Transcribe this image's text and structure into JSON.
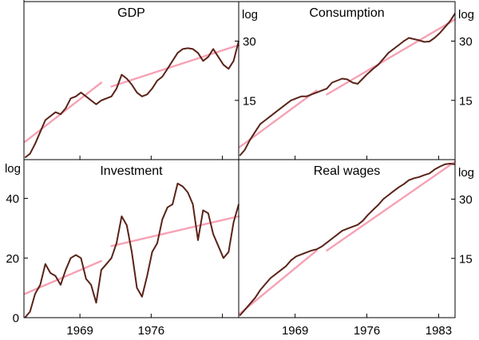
{
  "colors": {
    "series": "#5a2318",
    "trend": "#f7a1b4",
    "frame": "#000000"
  },
  "x_axis": {
    "tick_labels": [
      "1969",
      "1976",
      "1983"
    ]
  },
  "chart_data": [
    {
      "type": "line",
      "title": "GDP",
      "scale": "log",
      "ylabel": "log",
      "ylabel_side": "right",
      "ylim": [
        0,
        40
      ],
      "ytick_values": [
        15,
        30
      ],
      "ytick_labels": [
        "15",
        "30"
      ],
      "xlim": [
        1963.5,
        1984.6
      ],
      "series": {
        "name": "GDP",
        "x": [
          1963.6,
          1964.1,
          1964.6,
          1965.1,
          1965.6,
          1966.1,
          1966.6,
          1967.1,
          1967.6,
          1968.1,
          1968.6,
          1969.1,
          1969.6,
          1970.1,
          1970.6,
          1971.1,
          1971.6,
          1972.1,
          1972.6,
          1973.1,
          1973.6,
          1974.1,
          1974.6,
          1975.1,
          1975.6,
          1976.1,
          1976.6,
          1977.1,
          1977.6,
          1978.1,
          1978.6,
          1979.1,
          1979.6,
          1980.1,
          1980.6,
          1981.1,
          1981.6,
          1982.1,
          1982.6,
          1983.1,
          1983.6,
          1984.1,
          1984.6
        ],
        "y": [
          0.5,
          1.5,
          4,
          7,
          10,
          11,
          12,
          11.5,
          13,
          15.5,
          16,
          17,
          16,
          15,
          14,
          15,
          15.5,
          16,
          18,
          21.5,
          20.5,
          19,
          17,
          16,
          16.5,
          18,
          20,
          21,
          23,
          25,
          27,
          28,
          28.2,
          28,
          27,
          25,
          26,
          28,
          26,
          24,
          23,
          25,
          30
        ]
      },
      "trends": [
        {
          "x": [
            1963.6,
            1971.1
          ],
          "y": [
            4.5,
            19.5
          ]
        },
        {
          "x": [
            1972.1,
            1984.6
          ],
          "y": [
            18.5,
            29
          ]
        }
      ]
    },
    {
      "type": "line",
      "title": "Consumption",
      "scale": "log",
      "ylabel": "log",
      "ylabel_side": "right",
      "ylim": [
        0,
        40
      ],
      "ytick_values": [
        15,
        30
      ],
      "ytick_labels": [
        "15",
        "30"
      ],
      "xlim": [
        1963.5,
        1984.6
      ],
      "series": {
        "name": "Consumption",
        "x": [
          1963.6,
          1964.1,
          1964.6,
          1965.1,
          1965.6,
          1966.1,
          1966.6,
          1967.1,
          1967.6,
          1968.1,
          1968.6,
          1969.1,
          1969.6,
          1970.1,
          1970.6,
          1971.1,
          1971.6,
          1972.1,
          1972.6,
          1973.1,
          1973.6,
          1974.1,
          1974.6,
          1975.1,
          1975.6,
          1976.1,
          1976.6,
          1977.1,
          1977.6,
          1978.1,
          1978.6,
          1979.1,
          1979.6,
          1980.1,
          1980.6,
          1981.1,
          1981.6,
          1982.1,
          1982.6,
          1983.1,
          1983.6,
          1984.1,
          1984.6
        ],
        "y": [
          1,
          2.5,
          5,
          7,
          9,
          10,
          11,
          12,
          13,
          14,
          15,
          15.5,
          16,
          16,
          16.5,
          17,
          17.5,
          18,
          19.5,
          20,
          20.5,
          20.3,
          19.5,
          19.2,
          20.5,
          21.8,
          23,
          24,
          25.5,
          27,
          28,
          29,
          30,
          30.8,
          30.5,
          30.2,
          29.8,
          29.9,
          30.8,
          32,
          33.5,
          35,
          37
        ]
      },
      "trends": [
        {
          "x": [
            1963.6,
            1971.1
          ],
          "y": [
            3.2,
            17.5
          ]
        },
        {
          "x": [
            1972.1,
            1984.6
          ],
          "y": [
            16.5,
            35.5
          ]
        }
      ]
    },
    {
      "type": "line",
      "title": "Investment",
      "scale": "linear",
      "ylabel": "log",
      "ylabel_side": "left",
      "ylim": [
        0,
        53
      ],
      "ytick_values": [
        0,
        20,
        40
      ],
      "ytick_labels": [
        "0",
        "20",
        "40"
      ],
      "xlim": [
        1963.5,
        1984.6
      ],
      "series": {
        "name": "Investment",
        "x": [
          1963.6,
          1964.1,
          1964.6,
          1965.1,
          1965.6,
          1966.1,
          1966.6,
          1967.1,
          1967.6,
          1968.1,
          1968.6,
          1969.1,
          1969.6,
          1970.1,
          1970.6,
          1971.1,
          1971.6,
          1972.1,
          1972.6,
          1973.1,
          1973.6,
          1974.1,
          1974.6,
          1975.1,
          1975.6,
          1976.1,
          1976.6,
          1977.1,
          1977.6,
          1978.1,
          1978.6,
          1979.1,
          1979.6,
          1980.1,
          1980.6,
          1981.1,
          1981.6,
          1982.1,
          1982.6,
          1983.1,
          1983.6,
          1984.1,
          1984.6
        ],
        "y": [
          0,
          2,
          8,
          11,
          18,
          15,
          14,
          11,
          16,
          20,
          21,
          20,
          13,
          11,
          5,
          16,
          18,
          20,
          25,
          34,
          31,
          22,
          10,
          7,
          14,
          22,
          25,
          33,
          37,
          38,
          45,
          44,
          42,
          38,
          26,
          36,
          35,
          28,
          24,
          20,
          22,
          32,
          38
        ]
      },
      "trends": [
        {
          "x": [
            1963.6,
            1971.1
          ],
          "y": [
            8,
            19
          ]
        },
        {
          "x": [
            1972.1,
            1984.6
          ],
          "y": [
            24,
            34
          ]
        }
      ]
    },
    {
      "type": "line",
      "title": "Real wages",
      "scale": "log",
      "ylabel": "log",
      "ylabel_side": "right",
      "ylim": [
        0,
        40
      ],
      "ytick_values": [
        15,
        30
      ],
      "ytick_labels": [
        "15",
        "30"
      ],
      "xlim": [
        1963.5,
        1984.6
      ],
      "series": {
        "name": "Real wages",
        "x": [
          1963.6,
          1964.1,
          1964.6,
          1965.1,
          1965.6,
          1966.1,
          1966.6,
          1967.1,
          1967.6,
          1968.1,
          1968.6,
          1969.1,
          1969.6,
          1970.1,
          1970.6,
          1971.1,
          1971.6,
          1972.1,
          1972.6,
          1973.1,
          1973.6,
          1974.1,
          1974.6,
          1975.1,
          1975.6,
          1976.1,
          1976.6,
          1977.1,
          1977.6,
          1978.1,
          1978.6,
          1979.1,
          1979.6,
          1980.1,
          1980.6,
          1981.1,
          1981.6,
          1982.1,
          1982.6,
          1983.1,
          1983.6,
          1984.1,
          1984.6
        ],
        "y": [
          0.5,
          2,
          3.5,
          5,
          7,
          8.5,
          10,
          11,
          12,
          13,
          14.5,
          15.5,
          16,
          16.5,
          17,
          17.3,
          18,
          19,
          20,
          21,
          22,
          22.5,
          23,
          23.5,
          24.5,
          26,
          27.3,
          28.5,
          30,
          31,
          32,
          33,
          33.8,
          34.8,
          35.3,
          35.6,
          36.1,
          36.5,
          37.5,
          38.2,
          38.8,
          39,
          38.8
        ]
      },
      "trends": [
        {
          "x": [
            1963.6,
            1971.1
          ],
          "y": [
            1,
            17
          ]
        },
        {
          "x": [
            1972.1,
            1984.6
          ],
          "y": [
            17,
            39.5
          ]
        }
      ]
    }
  ]
}
